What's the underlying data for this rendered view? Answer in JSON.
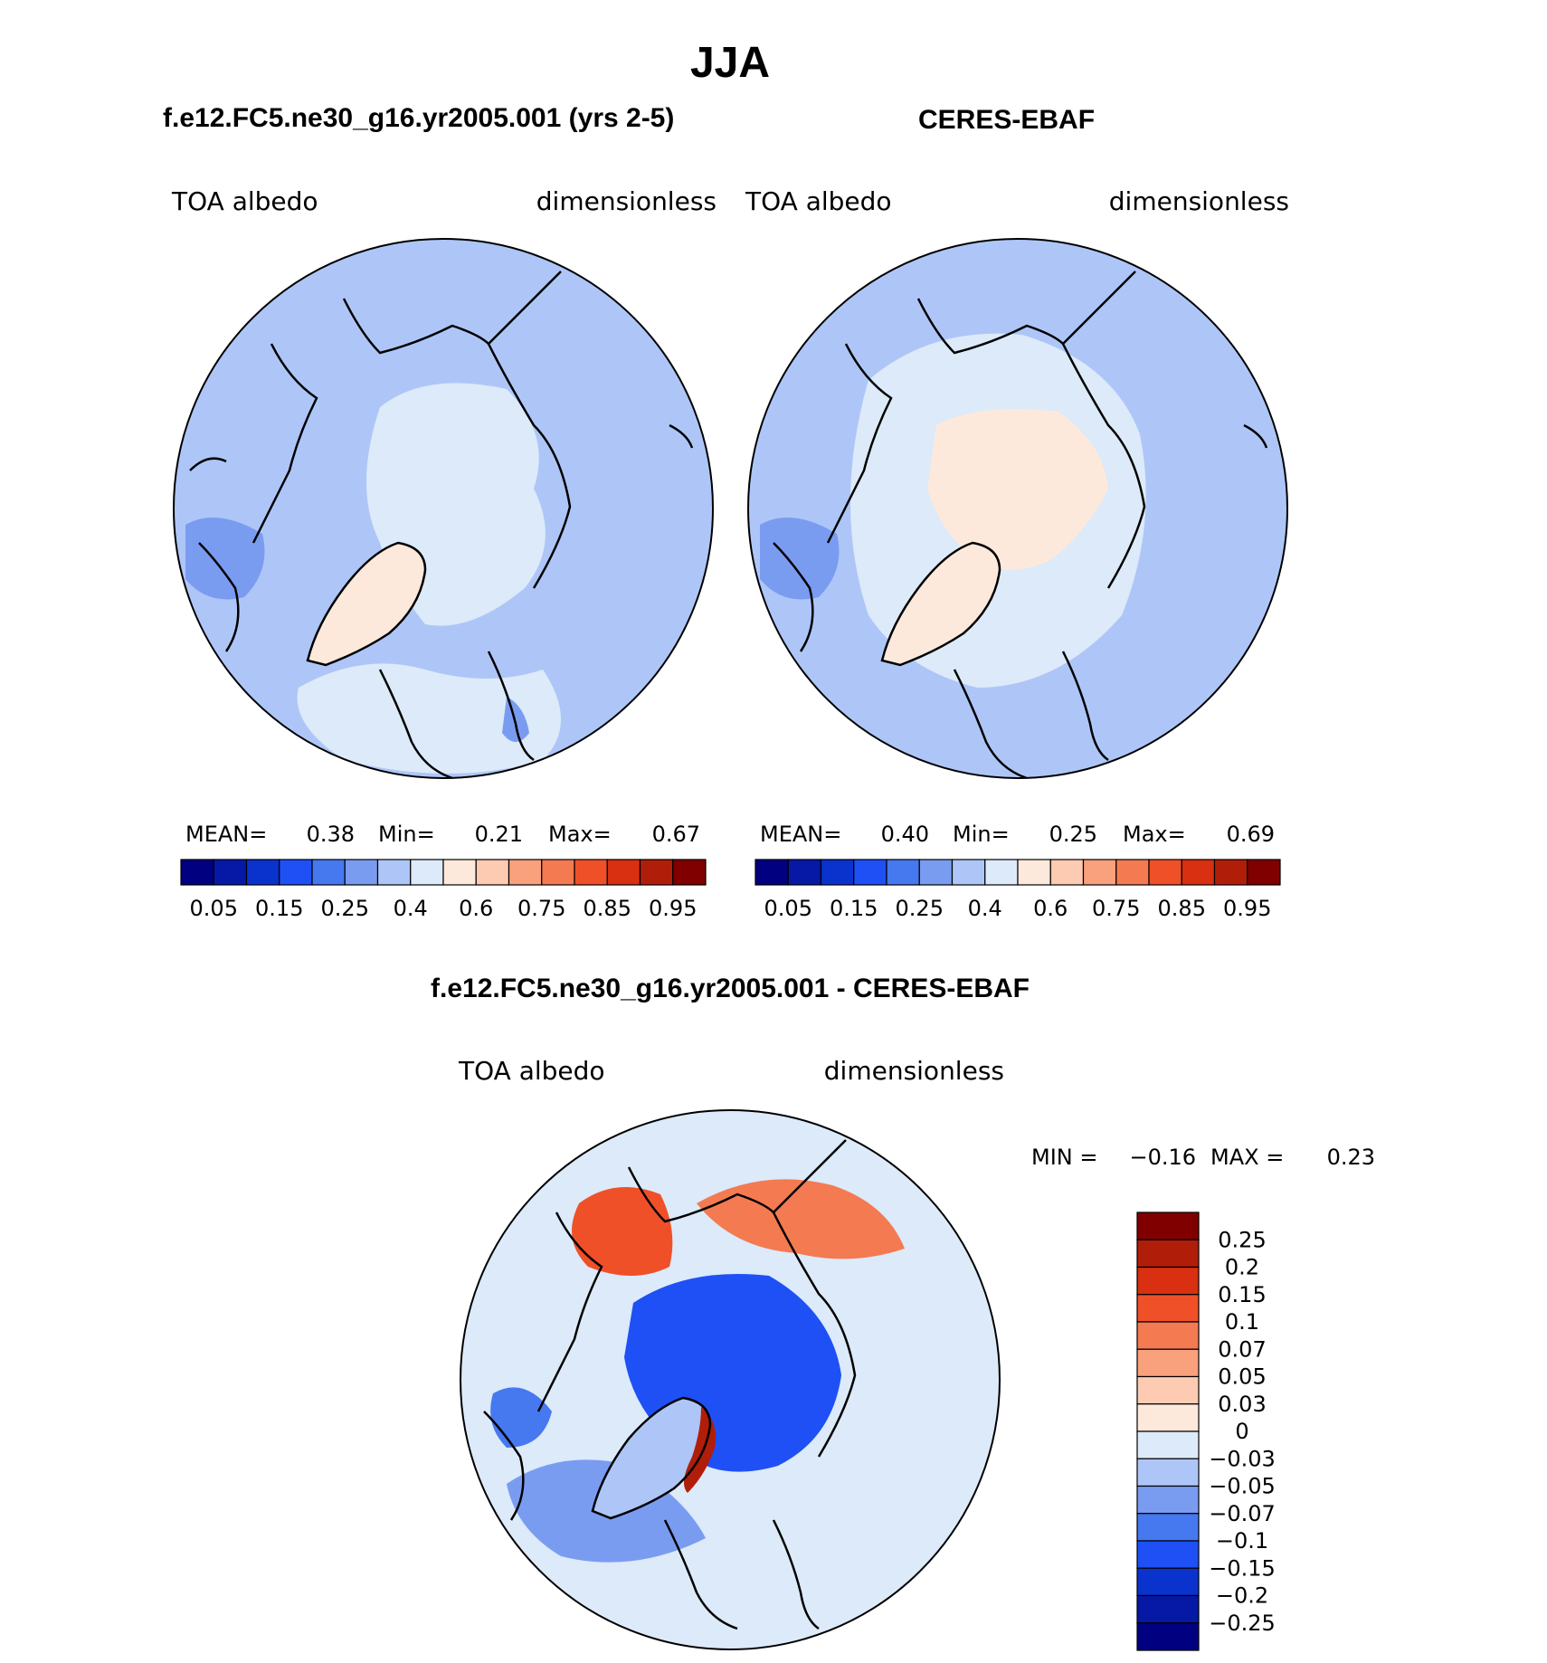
{
  "figure": {
    "season": "JJA",
    "model_title": "f.e12.FC5.ne30_g16.yr2005.001 (yrs 2-5)",
    "obs_title": "CERES-EBAF",
    "diff_title": "f.e12.FC5.ne30_g16.yr2005.001 - CERES-EBAF"
  },
  "palette": {
    "abs": [
      "#000080",
      "#0519a6",
      "#0a32cc",
      "#1e50f5",
      "#4678f0",
      "#7a9cf0",
      "#aec6f7",
      "#dceaf9",
      "#fde9dc",
      "#fccbb2",
      "#f9a07c",
      "#f47a52",
      "#f05028",
      "#d83010",
      "#b01e0a",
      "#800000"
    ],
    "diff": [
      "#000080",
      "#0519a6",
      "#0a32cc",
      "#1e50f5",
      "#4678f0",
      "#7a9cf0",
      "#aec6f7",
      "#dceaf9",
      "#fde9dc",
      "#fccbb2",
      "#f9a07c",
      "#f47a52",
      "#f05028",
      "#d83010",
      "#b01e0a",
      "#800000"
    ],
    "land_outline": "#000000"
  },
  "chart_data": [
    {
      "type": "heatmap",
      "projection": "north-polar-stereographic",
      "title": "f.e12.FC5.ne30_g16.yr2005.001 (yrs 2-5)",
      "left_label": "TOA albedo",
      "right_label": "dimensionless",
      "stats": {
        "mean_label": "MEAN=",
        "mean": "0.38",
        "min_label": "Min=",
        "min": "0.21",
        "max_label": "Max=",
        "max": "0.67"
      },
      "contour_levels": [
        0.05,
        0.1,
        0.15,
        0.2,
        0.25,
        0.3,
        0.4,
        0.5,
        0.6,
        0.7,
        0.75,
        0.8,
        0.85,
        0.9,
        0.95
      ],
      "colorbar_labels": [
        "0.05",
        "0.15",
        "0.25",
        "0.4",
        "0.6",
        "0.75",
        "0.85",
        "0.95"
      ],
      "regions": [
        {
          "name": "ocean-background",
          "value": 0.35
        },
        {
          "name": "arctic-ocean",
          "value": 0.45
        },
        {
          "name": "greenland",
          "value": 0.55
        },
        {
          "name": "labrador-sea",
          "value": 0.28
        },
        {
          "name": "north-atlantic-band",
          "value": 0.42
        },
        {
          "name": "baltic",
          "value": 0.25
        }
      ]
    },
    {
      "type": "heatmap",
      "projection": "north-polar-stereographic",
      "title": "CERES-EBAF",
      "left_label": "TOA albedo",
      "right_label": "dimensionless",
      "stats": {
        "mean_label": "MEAN=",
        "mean": "0.40",
        "min_label": "Min=",
        "min": "0.25",
        "max_label": "Max=",
        "max": "0.69"
      },
      "contour_levels": [
        0.05,
        0.1,
        0.15,
        0.2,
        0.25,
        0.3,
        0.4,
        0.5,
        0.6,
        0.7,
        0.75,
        0.8,
        0.85,
        0.9,
        0.95
      ],
      "colorbar_labels": [
        "0.05",
        "0.15",
        "0.25",
        "0.4",
        "0.6",
        "0.75",
        "0.85",
        "0.95"
      ],
      "regions": [
        {
          "name": "ocean-background",
          "value": 0.35
        },
        {
          "name": "arctic-ocean",
          "value": 0.55
        },
        {
          "name": "greenland",
          "value": 0.55
        },
        {
          "name": "subarctic-ring",
          "value": 0.45
        },
        {
          "name": "labrador-sea",
          "value": 0.28
        }
      ]
    },
    {
      "type": "heatmap",
      "projection": "north-polar-stereographic",
      "title": "f.e12.FC5.ne30_g16.yr2005.001 - CERES-EBAF",
      "left_label": "TOA albedo",
      "right_label": "dimensionless",
      "stats": {
        "min_label": "MIN =",
        "min": "−0.16",
        "max_label": "MAX =",
        "max": "0.23"
      },
      "contour_levels": [
        -0.25,
        -0.2,
        -0.15,
        -0.1,
        -0.07,
        -0.05,
        -0.03,
        0,
        0.03,
        0.05,
        0.07,
        0.1,
        0.15,
        0.2,
        0.25
      ],
      "colorbar_labels": [
        "0.25",
        "0.2",
        "0.15",
        "0.1",
        "0.07",
        "0.05",
        "0.03",
        "0",
        "−0.03",
        "−0.05",
        "−0.07",
        "−0.1",
        "−0.15",
        "−0.2",
        "−0.25"
      ],
      "regions": [
        {
          "name": "background",
          "value": -0.02
        },
        {
          "name": "arctic-ocean",
          "value": -0.12
        },
        {
          "name": "siberia-chukotka",
          "value": 0.09
        },
        {
          "name": "alaska",
          "value": 0.12
        },
        {
          "name": "greenland-interior",
          "value": -0.04
        },
        {
          "name": "greenland-east-coast",
          "value": 0.2
        },
        {
          "name": "north-atlantic",
          "value": -0.06
        },
        {
          "name": "hudson-bay",
          "value": -0.08
        }
      ]
    }
  ]
}
